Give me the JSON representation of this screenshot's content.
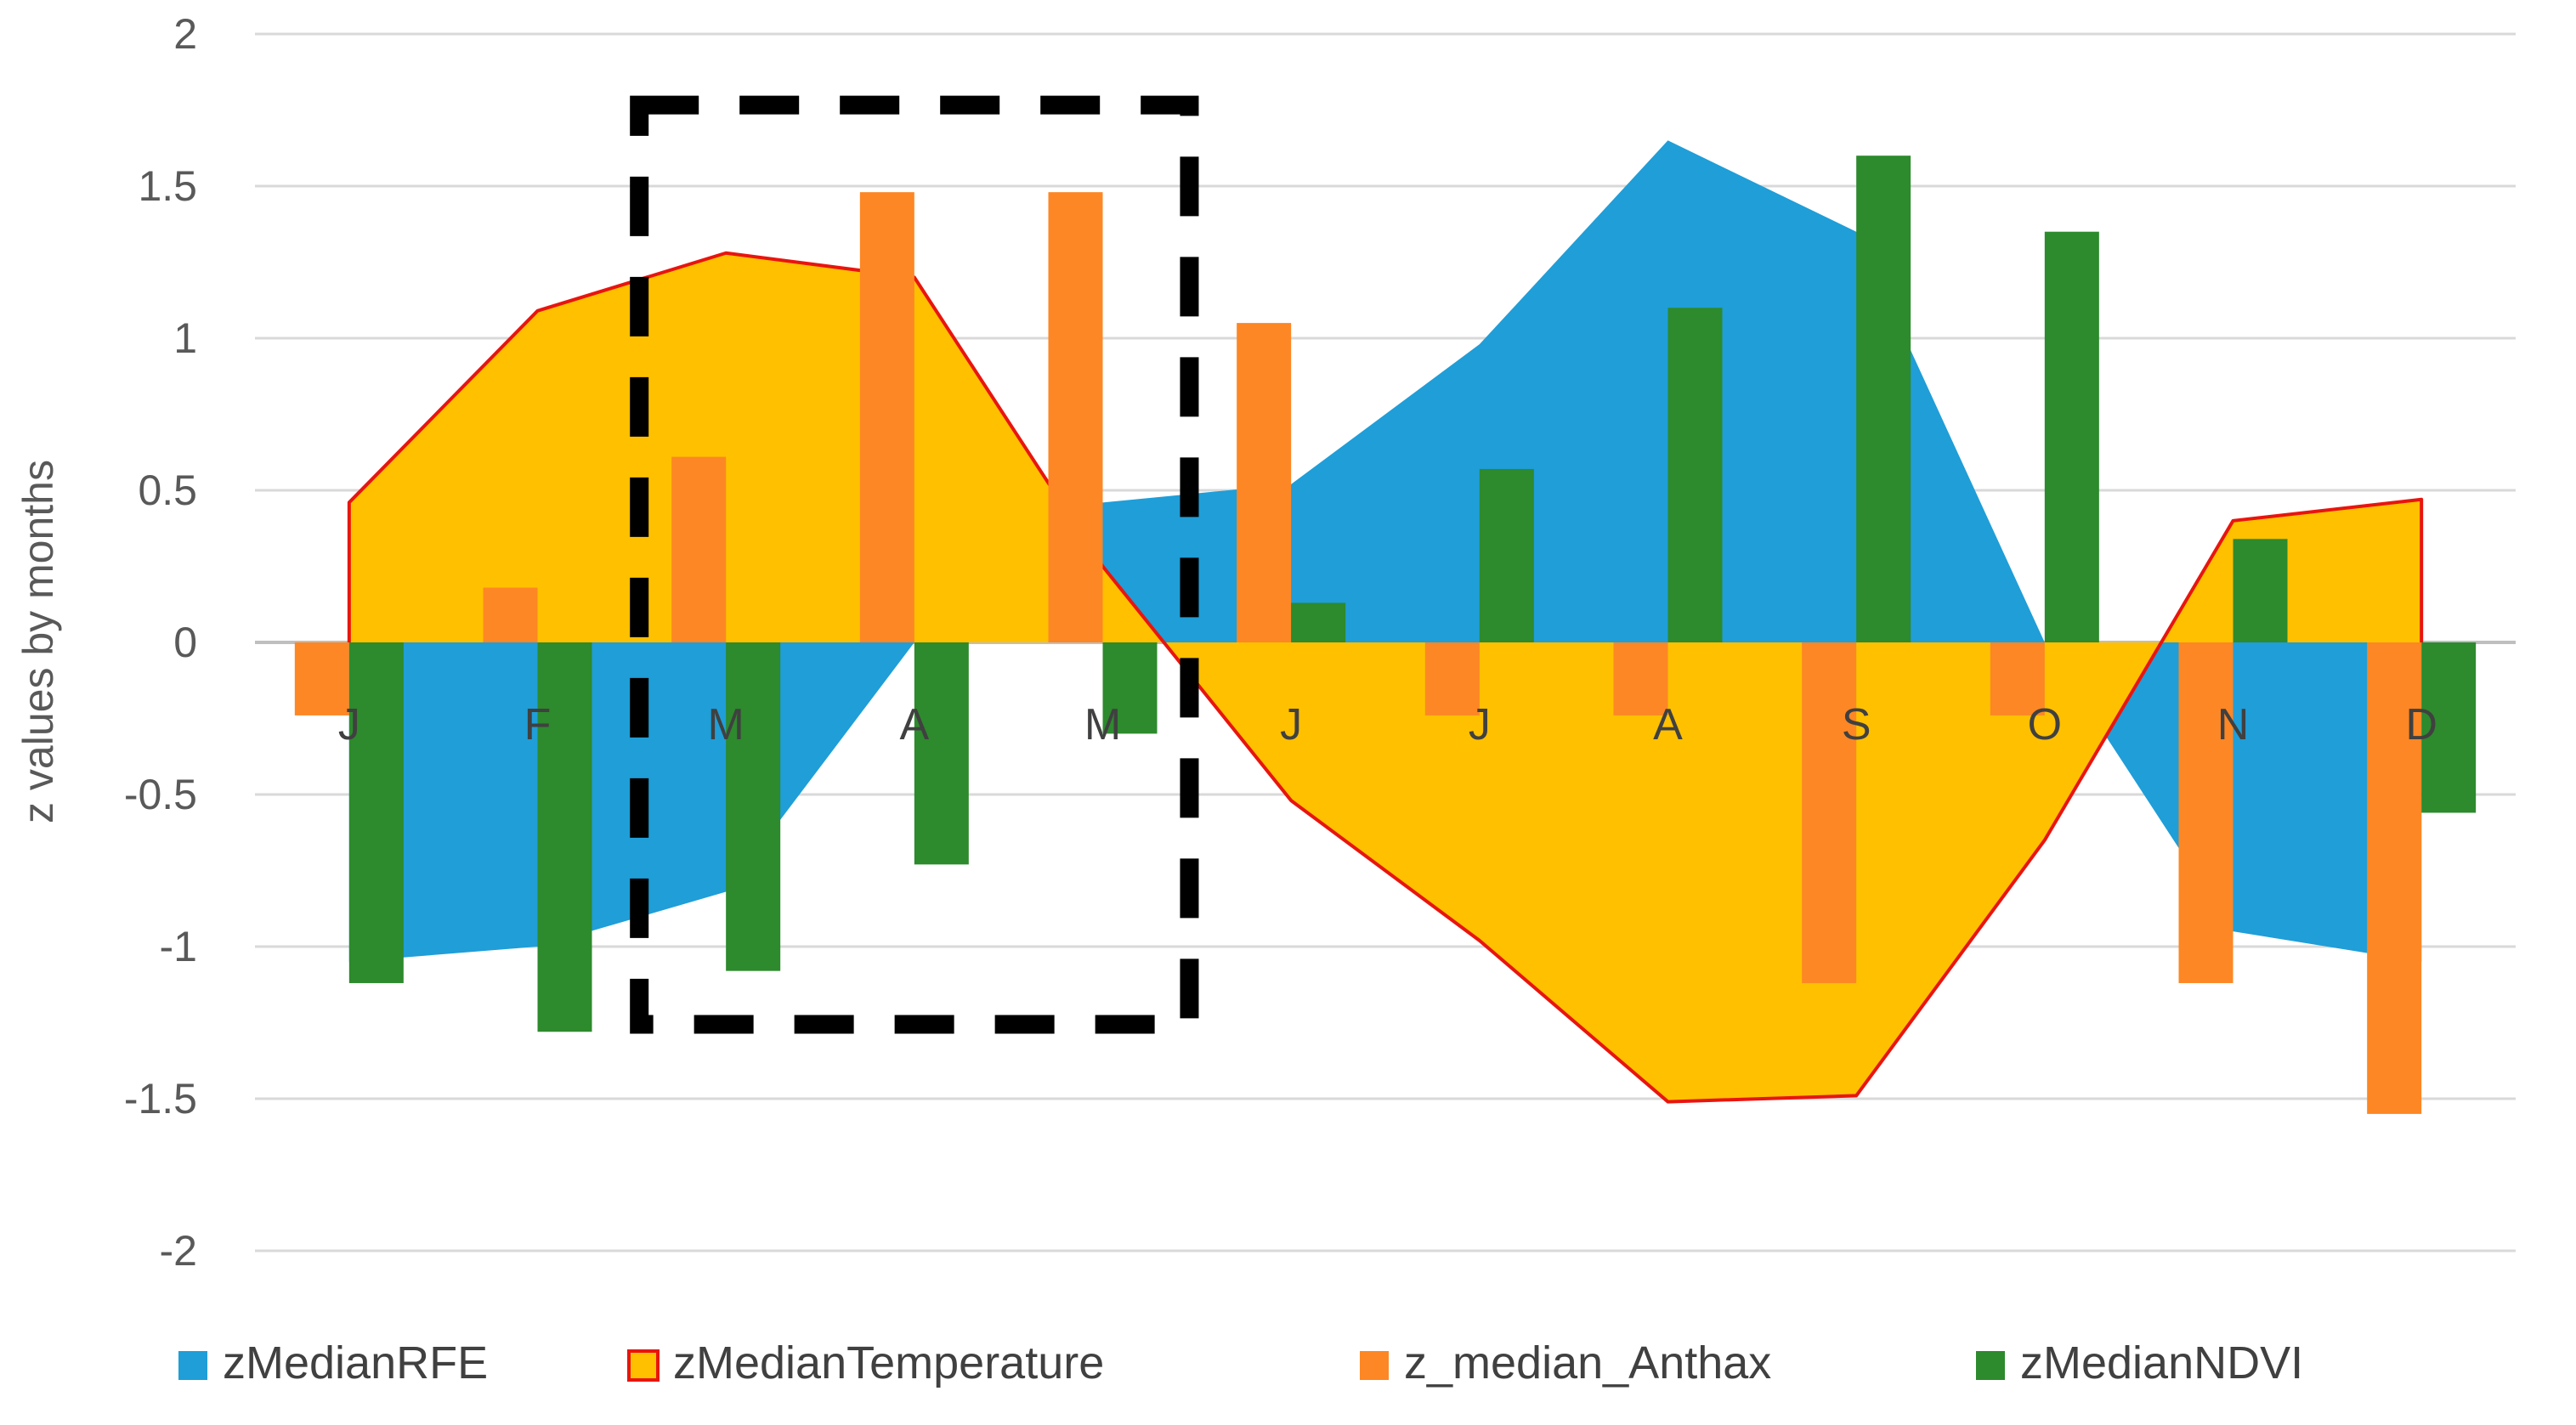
{
  "chart_data": {
    "type": "bar",
    "title": "",
    "xlabel": "",
    "ylabel": "z values by months",
    "ylim": [
      -2,
      2
    ],
    "yticks": [
      2,
      1.5,
      1,
      0.5,
      0,
      -0.5,
      -1,
      -1.5,
      -2
    ],
    "ytick_labels": [
      "2",
      "1.5",
      "1",
      "0.5",
      "0",
      "-0.5",
      "-1",
      "-1.5",
      "-2"
    ],
    "categories": [
      "J",
      "F",
      "M",
      "A",
      "M",
      "J",
      "J",
      "A",
      "S",
      "O",
      "N",
      "D"
    ],
    "grid": "horizontal",
    "legend_position": "bottom",
    "highlight_box": {
      "style": "dashed",
      "months": [
        "M",
        "A",
        "M"
      ],
      "y_range": [
        -1.25,
        1.8
      ]
    },
    "series": [
      {
        "name": "zMedianRFE",
        "kind": "area",
        "color": "#1f9ed8",
        "values": [
          -1.05,
          -1.0,
          -0.82,
          0.0,
          0.46,
          0.52,
          0.98,
          1.65,
          1.35,
          0.0,
          -0.95,
          -1.05
        ]
      },
      {
        "name": "zMedianTemperature",
        "kind": "area",
        "color": "#ffc000",
        "edge_color": "#e8150f",
        "values": [
          0.46,
          1.09,
          1.28,
          1.2,
          0.25,
          -0.52,
          -0.98,
          -1.51,
          -1.49,
          -0.65,
          0.4,
          0.47
        ]
      },
      {
        "name": "z_median_Anthax",
        "kind": "bar",
        "color": "#fd8724",
        "values": [
          -0.24,
          0.18,
          0.61,
          1.48,
          1.48,
          1.05,
          -0.24,
          -0.24,
          -1.12,
          -0.24,
          -1.12,
          -1.55
        ]
      },
      {
        "name": "zMedianNDVI",
        "kind": "bar",
        "color": "#2d8a2d",
        "values": [
          -1.12,
          -1.28,
          -1.08,
          -0.73,
          -0.3,
          0.13,
          0.57,
          1.1,
          1.6,
          1.35,
          0.34,
          -0.56
        ]
      }
    ]
  }
}
